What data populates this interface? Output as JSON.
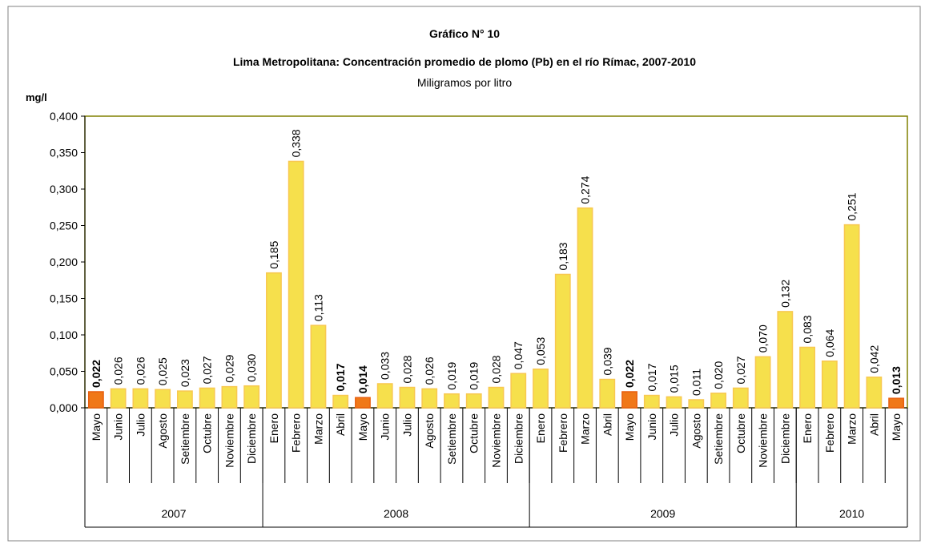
{
  "chart_data": {
    "type": "bar",
    "title": "Gráfico N° 10",
    "subtitle": "Lima Metropolitana: Concentración promedio de plomo (Pb) en el río Rímac, 2007-2010",
    "subtitle2": "Miligramos por litro",
    "y_label": "mg/l",
    "categories": [
      "Mayo",
      "Junio",
      "Julio",
      "Agosto",
      "Setiembre",
      "Octubre",
      "Noviembre",
      "Diciembre",
      "Enero",
      "Febrero",
      "Marzo",
      "Abril",
      "Mayo",
      "Junio",
      "Julio",
      "Agosto",
      "Setiembre",
      "Octubre",
      "Noviembre",
      "Diciembre",
      "Enero",
      "Febrero",
      "Marzo",
      "Abril",
      "Mayo",
      "Junio",
      "Julio",
      "Agosto",
      "Setiembre",
      "Octubre",
      "Noviembre",
      "Diciembre",
      "Enero",
      "Febrero",
      "Marzo",
      "Abril",
      "Mayo"
    ],
    "values": [
      0.022,
      0.026,
      0.026,
      0.025,
      0.023,
      0.027,
      0.029,
      0.03,
      0.185,
      0.338,
      0.113,
      0.017,
      0.014,
      0.033,
      0.028,
      0.026,
      0.019,
      0.019,
      0.028,
      0.047,
      0.053,
      0.183,
      0.274,
      0.039,
      0.022,
      0.017,
      0.015,
      0.011,
      0.02,
      0.027,
      0.07,
      0.132,
      0.083,
      0.064,
      0.251,
      0.042,
      0.013
    ],
    "value_labels": [
      "0,022",
      "0,026",
      "0,026",
      "0,025",
      "0,023",
      "0,027",
      "0,029",
      "0,030",
      "0,185",
      "0,338",
      "0,113",
      "0,017",
      "0,014",
      "0,033",
      "0,028",
      "0,026",
      "0,019",
      "0,019",
      "0,028",
      "0,047",
      "0,053",
      "0,183",
      "0,274",
      "0,039",
      "0,022",
      "0,017",
      "0,015",
      "0,011",
      "0,020",
      "0,027",
      "0,070",
      "0,132",
      "0,083",
      "0,064",
      "0,251",
      "0,042",
      "0,013"
    ],
    "color": "#f6e04c",
    "highlight_color": "#f07818",
    "highlight": [
      0,
      12,
      24,
      36
    ],
    "bold_labels": [
      0,
      11,
      12,
      24,
      36
    ],
    "groups": [
      {
        "label": "2007",
        "size": 8
      },
      {
        "label": "2008",
        "size": 12
      },
      {
        "label": "2009",
        "size": 12
      },
      {
        "label": "2010",
        "size": 5
      }
    ],
    "ylim": [
      0,
      0.4
    ],
    "yticks": [
      {
        "value": 0,
        "label": "0,000"
      },
      {
        "value": 0.05,
        "label": "0,050"
      },
      {
        "value": 0.1,
        "label": "0,100"
      },
      {
        "value": 0.15,
        "label": "0,150"
      },
      {
        "value": 0.2,
        "label": "0,200"
      },
      {
        "value": 0.25,
        "label": "0,250"
      },
      {
        "value": 0.3,
        "label": "0,300"
      },
      {
        "value": 0.35,
        "label": "0,350"
      },
      {
        "value": 0.4,
        "label": "0,400"
      }
    ]
  }
}
